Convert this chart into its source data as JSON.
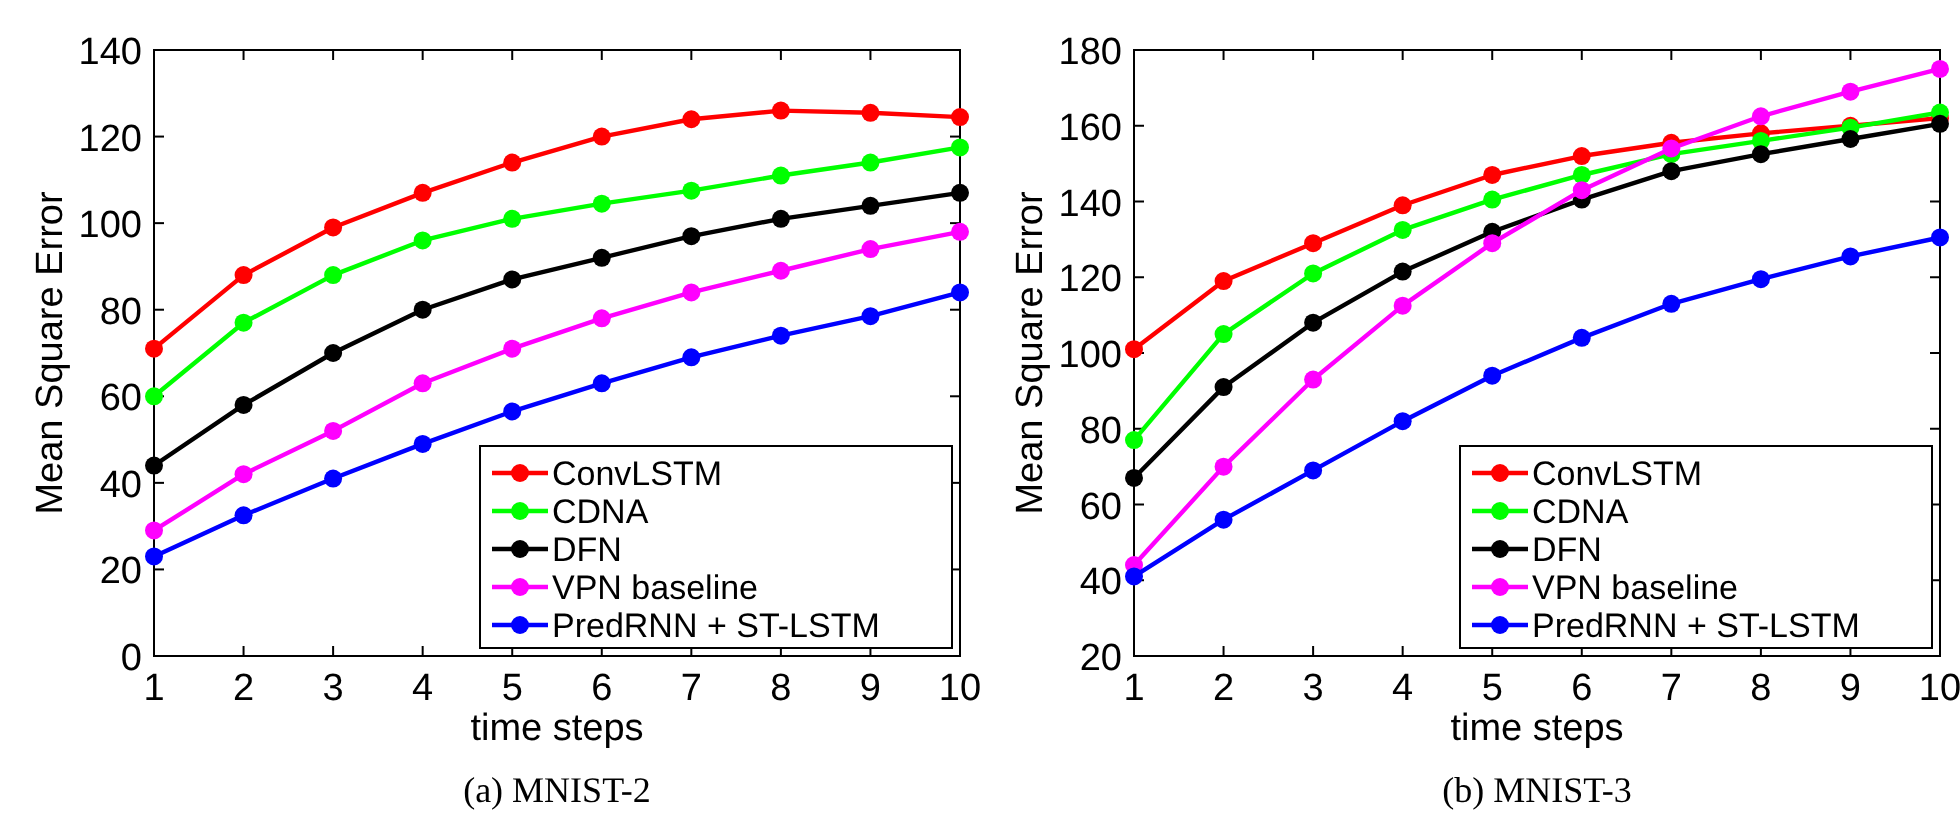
{
  "chart_data": [
    {
      "type": "line",
      "title": "(a)  MNIST-2",
      "xlabel": "time steps",
      "ylabel": "Mean Square Error",
      "x": [
        1,
        2,
        3,
        4,
        5,
        6,
        7,
        8,
        9,
        10
      ],
      "xlim": [
        1,
        10
      ],
      "xticks": [
        1,
        2,
        3,
        4,
        5,
        6,
        7,
        8,
        9,
        10
      ],
      "ylim": [
        0,
        140
      ],
      "yticks": [
        0,
        20,
        40,
        60,
        80,
        100,
        120,
        140
      ],
      "grid": false,
      "legend": "bottom right",
      "marker": "circle",
      "line_style": "solid",
      "series": [
        {
          "name": "ConvLSTM",
          "color": "#ff0000",
          "values": [
            71,
            88,
            99,
            107,
            114,
            120,
            124,
            126,
            125.5,
            124.5
          ]
        },
        {
          "name": "CDNA",
          "color": "#00ff00",
          "values": [
            60,
            77,
            88,
            96,
            101,
            104.5,
            107.5,
            111,
            114,
            117.5
          ]
        },
        {
          "name": "DFN",
          "color": "#000000",
          "values": [
            44,
            58,
            70,
            80,
            87,
            92,
            97,
            101,
            104,
            107
          ]
        },
        {
          "name": "VPN baseline",
          "color": "#ff00ff",
          "values": [
            29,
            42,
            52,
            63,
            71,
            78,
            84,
            89,
            94,
            98
          ]
        },
        {
          "name": "PredRNN + ST-LSTM",
          "color": "#0000ff",
          "values": [
            23,
            32.5,
            41,
            49,
            56.5,
            63,
            69,
            74,
            78.5,
            84
          ]
        }
      ]
    },
    {
      "type": "line",
      "title": "(b)  MNIST-3",
      "xlabel": "time steps",
      "ylabel": "Mean Square Error",
      "x": [
        1,
        2,
        3,
        4,
        5,
        6,
        7,
        8,
        9,
        10
      ],
      "xlim": [
        1,
        10
      ],
      "xticks": [
        1,
        2,
        3,
        4,
        5,
        6,
        7,
        8,
        9,
        10
      ],
      "ylim": [
        20,
        180
      ],
      "yticks": [
        20,
        40,
        60,
        80,
        100,
        120,
        140,
        160,
        180
      ],
      "grid": false,
      "legend": "bottom right",
      "marker": "circle",
      "line_style": "solid",
      "series": [
        {
          "name": "ConvLSTM",
          "color": "#ff0000",
          "values": [
            101,
            119,
            129,
            139,
            147,
            152,
            155.5,
            158,
            160,
            162
          ]
        },
        {
          "name": "CDNA",
          "color": "#00ff00",
          "values": [
            77,
            105,
            121,
            132.5,
            140.5,
            147,
            152.5,
            156,
            159.5,
            163.5
          ]
        },
        {
          "name": "DFN",
          "color": "#000000",
          "values": [
            67,
            91,
            108,
            121.5,
            132,
            140.5,
            148,
            152.5,
            156.5,
            160.5
          ]
        },
        {
          "name": "VPN baseline",
          "color": "#ff00ff",
          "values": [
            44,
            70,
            93,
            112.5,
            129,
            143,
            154,
            162.5,
            169,
            175
          ]
        },
        {
          "name": "PredRNN + ST-LSTM",
          "color": "#0000ff",
          "values": [
            41,
            56,
            69,
            82,
            94,
            104,
            113,
            119.5,
            125.5,
            130.5
          ]
        }
      ]
    }
  ]
}
